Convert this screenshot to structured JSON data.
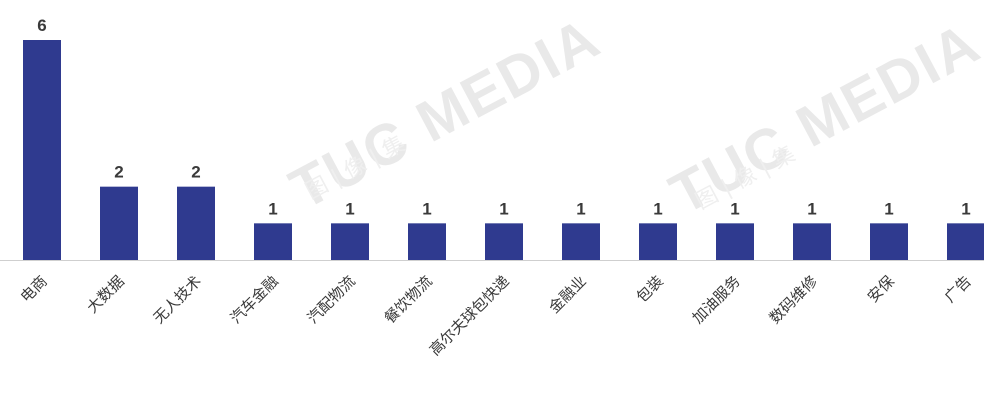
{
  "watermark": {
    "text": "TUC MEDIA",
    "subtext": "图 | 像 | 集"
  },
  "chart_data": {
    "type": "bar",
    "categories": [
      "电商",
      "大数据",
      "无人技术",
      "汽车金融",
      "汽配物流",
      "餐饮物流",
      "高尔夫球包快递",
      "金融业",
      "包装",
      "加油服务",
      "数码维修",
      "安保",
      "广告"
    ],
    "values": [
      6,
      2,
      2,
      1,
      1,
      1,
      1,
      1,
      1,
      1,
      1,
      1,
      1
    ],
    "title": "",
    "xlabel": "",
    "ylabel": "",
    "ylim": [
      0,
      6
    ],
    "grid": false,
    "legend": "none",
    "bar_color": "#2f3a8f",
    "label_color": "#3a3a3a",
    "axis_color": "#cfcfcf"
  }
}
